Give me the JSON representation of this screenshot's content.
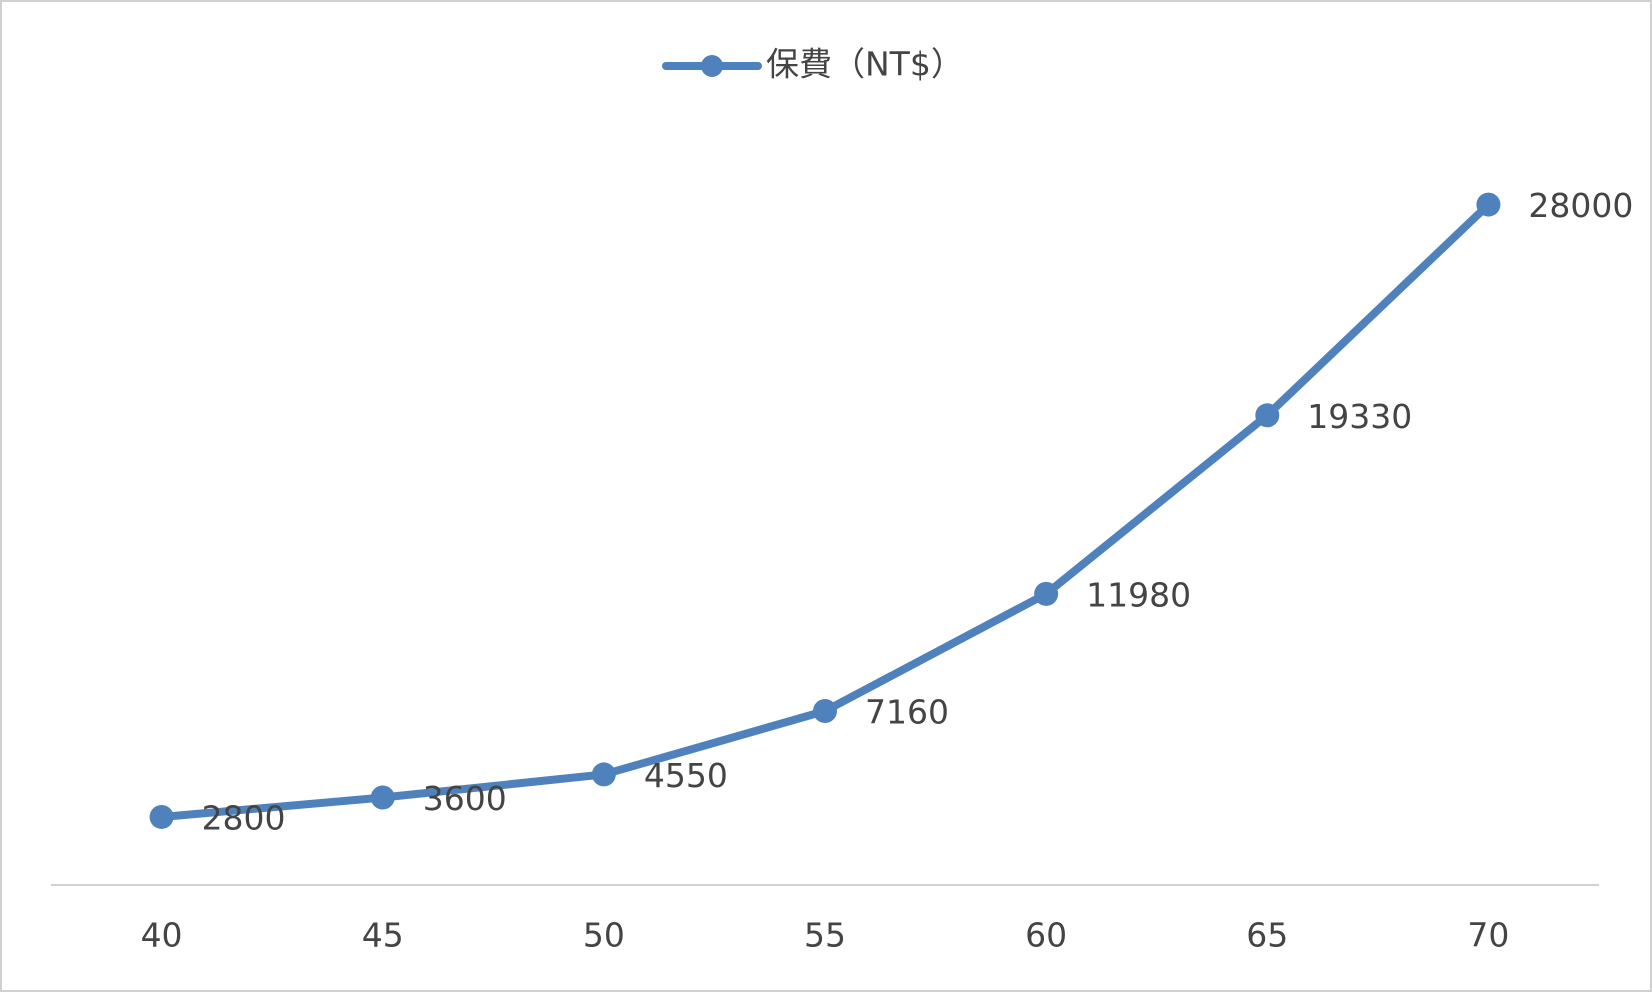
{
  "chart_data": {
    "type": "line",
    "categories": [
      "40",
      "45",
      "50",
      "55",
      "60",
      "65",
      "70"
    ],
    "series": [
      {
        "name": "保費（NT$）",
        "color": "#4f81bd",
        "values": [
          2800,
          3600,
          4550,
          7160,
          11980,
          19330,
          28000
        ]
      }
    ],
    "ylim": [
      0,
      30000
    ],
    "legend": "top"
  }
}
